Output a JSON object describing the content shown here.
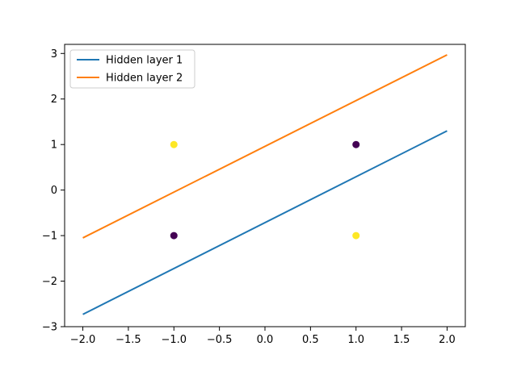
{
  "chart_data": {
    "type": "line",
    "title": "",
    "xlabel": "",
    "ylabel": "",
    "xlim": [
      -2.2,
      2.2
    ],
    "ylim": [
      -3.0,
      3.2
    ],
    "xticks": [
      -2.0,
      -1.5,
      -1.0,
      -0.5,
      0.0,
      0.5,
      1.0,
      1.5,
      2.0
    ],
    "xtick_labels": [
      "−2.0",
      "−1.5",
      "−1.0",
      "−0.5",
      "0.0",
      "0.5",
      "1.0",
      "1.5",
      "2.0"
    ],
    "yticks": [
      -3,
      -2,
      -1,
      0,
      1,
      2,
      3
    ],
    "ytick_labels": [
      "−3",
      "−2",
      "−1",
      "0",
      "1",
      "2",
      "3"
    ],
    "grid": false,
    "legend_position": "top-left",
    "series": [
      {
        "name": "Hidden layer 1",
        "color": "#1f77b4",
        "x": [
          -2.0,
          2.0
        ],
        "y": [
          -2.73,
          1.3
        ]
      },
      {
        "name": "Hidden layer 2",
        "color": "#ff7f0e",
        "x": [
          -2.0,
          2.0
        ],
        "y": [
          -1.05,
          2.97
        ]
      }
    ],
    "points": [
      {
        "x": -1,
        "y": 1,
        "color": "#fde725"
      },
      {
        "x": -1,
        "y": -1,
        "color": "#440154"
      },
      {
        "x": 1,
        "y": 1,
        "color": "#440154"
      },
      {
        "x": 1,
        "y": -1,
        "color": "#fde725"
      }
    ]
  }
}
